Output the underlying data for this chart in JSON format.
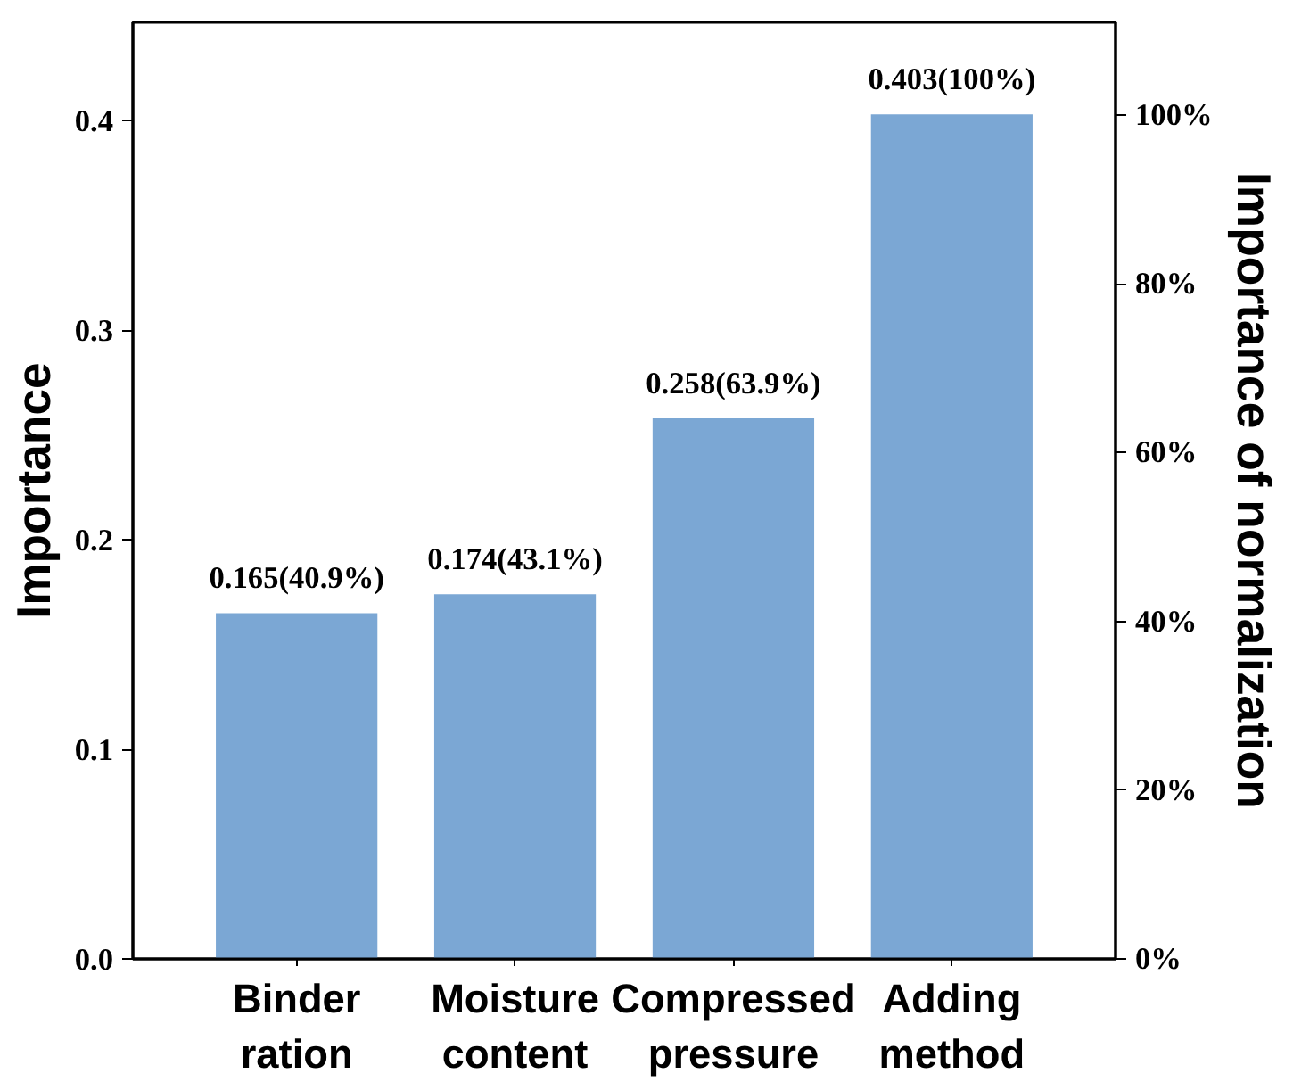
{
  "chart_data": {
    "type": "bar",
    "ylabel": "Importance",
    "y2label": "Importance of normalization",
    "categories": [
      "Binder ration",
      "Moisture content",
      "Compressed pressure",
      "Adding method"
    ],
    "values": [
      0.165,
      0.174,
      0.258,
      0.403
    ],
    "value_labels": [
      "0.165(40.9%)",
      "0.174(43.1%)",
      "0.258(63.9%)",
      "0.403(100%)"
    ],
    "color": "#7ba7d4",
    "ylim": [
      0,
      0.447
    ],
    "yticks": [
      {
        "value": 0,
        "label": "0.0"
      },
      0.1,
      0.2,
      0.3,
      0.4
    ],
    "y2lim": [
      0,
      111
    ],
    "y2ticks": [
      {
        "value": 0,
        "label": "0%"
      },
      {
        "value": 20,
        "label": "20%"
      },
      {
        "value": 40,
        "label": "40%"
      },
      {
        "value": 60,
        "label": "60%"
      },
      {
        "value": 80,
        "label": "80%"
      },
      {
        "value": 100,
        "label": "100%"
      }
    ],
    "grid": false
  }
}
